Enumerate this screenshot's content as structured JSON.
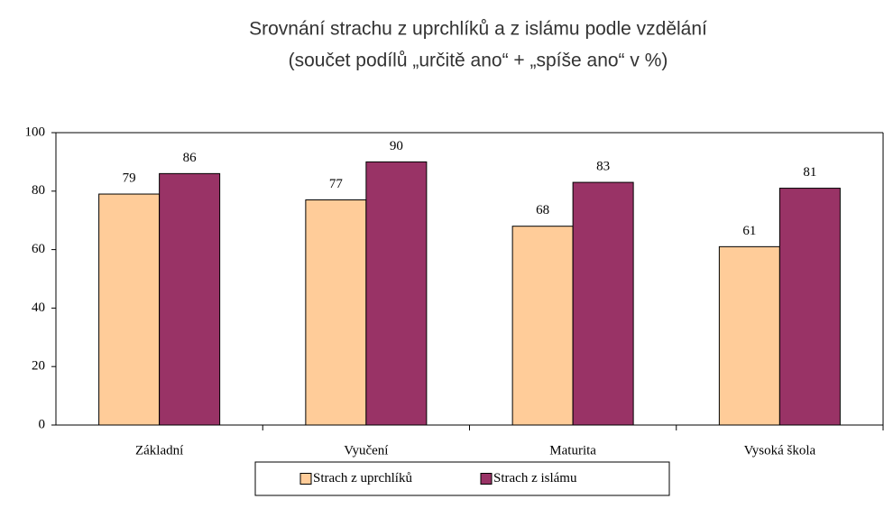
{
  "chart_data": {
    "type": "bar",
    "title": "Srovnání strachu z uprchlíků a z islámu podle vzdělání",
    "subtitle": "(součet podílů „určitě ano“ + „spíše ano“ v %)",
    "categories": [
      "Základní",
      "Vyučení",
      "Maturita",
      "Vysoká škola"
    ],
    "series": [
      {
        "name": "Strach z uprchlíků",
        "color": "#ffcc99",
        "values": [
          79,
          77,
          68,
          61
        ]
      },
      {
        "name": "Strach z islámu",
        "color": "#993366",
        "values": [
          86,
          90,
          83,
          81
        ]
      }
    ],
    "ylim": [
      0,
      100
    ],
    "yticks": [
      0,
      20,
      40,
      60,
      80,
      100
    ],
    "legend": "bottom"
  }
}
